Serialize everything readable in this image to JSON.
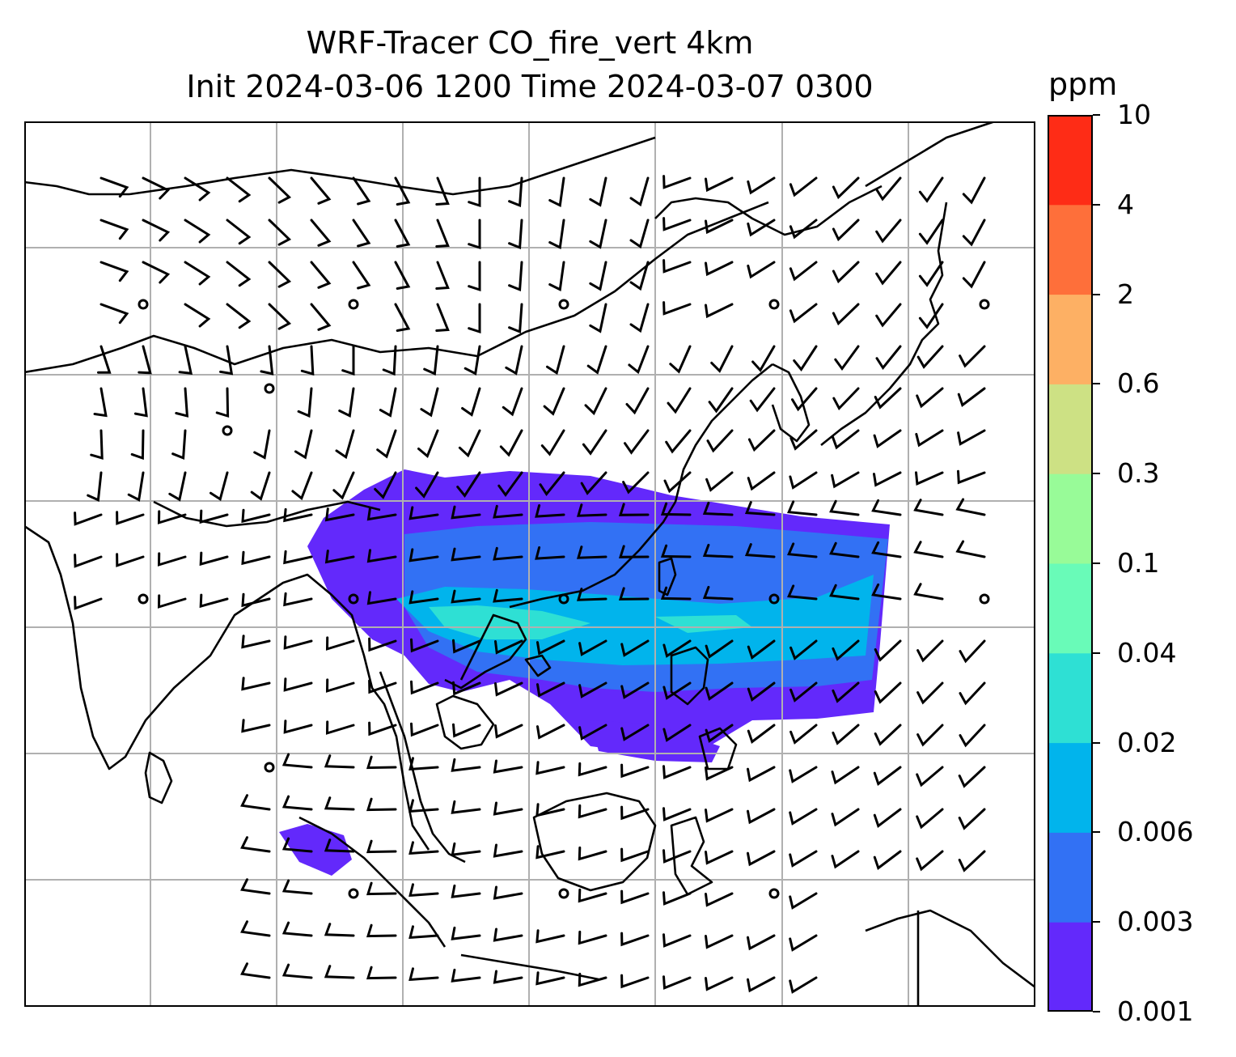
{
  "title": {
    "line1": "WRF-Tracer CO_fire_vert 4km",
    "line2": "Init 2024-03-06 1200 Time 2024-03-07 0300"
  },
  "colorbar": {
    "unit": "ppm",
    "levels": [
      "0.001",
      "0.003",
      "0.006",
      "0.02",
      "0.04",
      "0.1",
      "0.3",
      "0.6",
      "2",
      "4",
      "10"
    ],
    "colors": [
      "#6329fb",
      "#3271f4",
      "#01b4ec",
      "#2ee0d4",
      "#69fbb8",
      "#98fb98",
      "#cde184",
      "#fdb064",
      "#fe6f3a",
      "#fe2c16"
    ]
  },
  "map": {
    "field_colors": {
      "low": "#6329fb",
      "mid": "#3271f4",
      "high": "#01b4ec",
      "peak": "#2ee0d4"
    },
    "gridline_color": "#b0b0b0",
    "coastline_color": "#000000"
  }
}
